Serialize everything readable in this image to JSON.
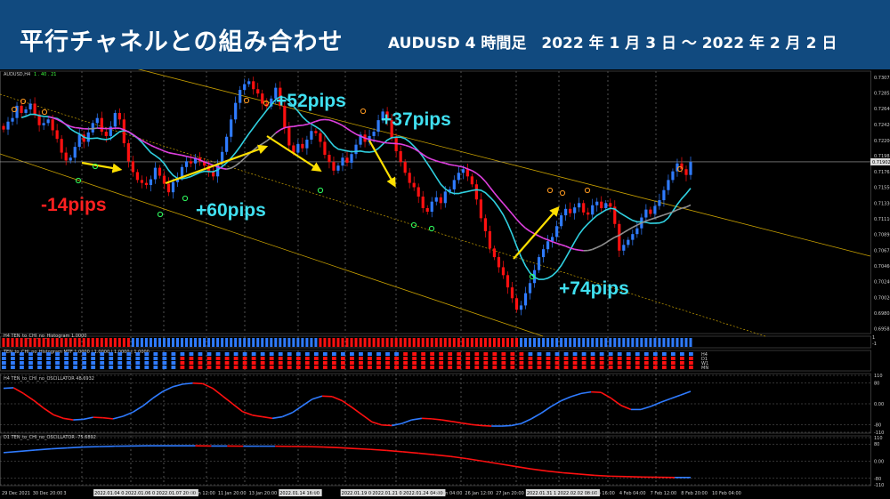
{
  "banner": {
    "title": "平行チャネルとの組み合わせ",
    "subtitle": "AUDUSD 4 時間足　2022 年 1 月 3 日 ～ 2022 年 2 月 2 日"
  },
  "chart_data": [
    {
      "type": "candlestick",
      "symbol_label": "AUDUSD,H4",
      "ohlc_label": "1 . 40 . 21",
      "y_ticks": [
        "0.73075",
        "0.72855",
        "0.72640",
        "0.72420",
        "0.72200",
        "0.71985",
        "0.71765",
        "0.71550",
        "0.71330",
        "0.71110",
        "0.70895",
        "0.70675",
        "0.70460",
        "0.70240",
        "0.70020",
        "0.69805",
        "0.69585"
      ],
      "current_price": "0.71902",
      "ylim": [
        0.6952,
        0.7316
      ],
      "close": [
        0.7235,
        0.7246,
        0.7251,
        0.7268,
        0.7258,
        0.7263,
        0.7271,
        0.7256,
        0.7241,
        0.7244,
        0.7249,
        0.7234,
        0.7222,
        0.7203,
        0.7192,
        0.7196,
        0.7211,
        0.7228,
        0.7218,
        0.7231,
        0.7244,
        0.7251,
        0.7232,
        0.7226,
        0.7239,
        0.7258,
        0.7249,
        0.7216,
        0.7191,
        0.7176,
        0.7165,
        0.7161,
        0.7158,
        0.7166,
        0.7182,
        0.7171,
        0.716,
        0.7148,
        0.7162,
        0.7168,
        0.7183,
        0.7191,
        0.7188,
        0.7196,
        0.7191,
        0.7185,
        0.7177,
        0.717,
        0.7188,
        0.7204,
        0.7225,
        0.7249,
        0.7272,
        0.729,
        0.7298,
        0.7302,
        0.7291,
        0.7285,
        0.7271,
        0.7267,
        0.7278,
        0.7293,
        0.7268,
        0.7238,
        0.7213,
        0.7203,
        0.7215,
        0.7209,
        0.7221,
        0.7233,
        0.723,
        0.7218,
        0.72,
        0.719,
        0.7178,
        0.7185,
        0.7196,
        0.7189,
        0.7201,
        0.7214,
        0.7228,
        0.7218,
        0.7226,
        0.7232,
        0.7248,
        0.726,
        0.7248,
        0.7224,
        0.7205,
        0.719,
        0.7175,
        0.7161,
        0.7155,
        0.7142,
        0.7126,
        0.7121,
        0.7135,
        0.7141,
        0.7133,
        0.7149,
        0.7152,
        0.7165,
        0.7175,
        0.718,
        0.717,
        0.7159,
        0.7138,
        0.7112,
        0.7094,
        0.707,
        0.7058,
        0.7044,
        0.7033,
        0.7016,
        0.7001,
        0.6985,
        0.6991,
        0.7008,
        0.7022,
        0.704,
        0.7058,
        0.7069,
        0.708,
        0.7086,
        0.7101,
        0.7116,
        0.7125,
        0.7119,
        0.7127,
        0.7133,
        0.712,
        0.7117,
        0.713,
        0.7135,
        0.7126,
        0.7133,
        0.7128,
        0.7104,
        0.7067,
        0.7075,
        0.7082,
        0.709,
        0.7098,
        0.7113,
        0.7124,
        0.7118,
        0.7129,
        0.7137,
        0.7151,
        0.7165,
        0.7177,
        0.7188,
        0.718,
        0.7172,
        0.719
      ],
      "trades": [
        {
          "label": "-14pips",
          "color": "#ff2020"
        },
        {
          "label": "+60pips",
          "color": "#40e0f0"
        },
        {
          "label": "+52pips",
          "color": "#40e0f0"
        },
        {
          "label": "+37pips",
          "color": "#40e0f0"
        },
        {
          "label": "+74pips",
          "color": "#40e0f0"
        }
      ]
    },
    {
      "type": "histogram-strip",
      "label": "H4 TEN_to_CHI_no_Histogram 1.0000",
      "scale_top": "1",
      "scale_bottom": "-1"
    },
    {
      "type": "heatmap-strip",
      "label": "TEN_to_CHI_no_Histogram MTF 1.0000 | 1.0000 | 1.0000 | 1.0000",
      "rows": [
        "H4",
        "D1",
        "W1",
        "MN"
      ]
    },
    {
      "type": "line",
      "label": "H4 TEN_to_CHI_no_OSCILLATOR 48.6932",
      "y_ticks": [
        "110",
        "80",
        "0.00",
        "-80",
        "-110"
      ],
      "values": [
        60,
        62,
        40,
        14,
        -16,
        -42,
        -56,
        -62,
        -60,
        -52,
        -54,
        -58,
        -48,
        -32,
        -8,
        22,
        48,
        66,
        76,
        80,
        78,
        60,
        30,
        0,
        -30,
        -44,
        -50,
        -56,
        -50,
        -34,
        -8,
        18,
        30,
        28,
        12,
        -14,
        -42,
        -70,
        -82,
        -84,
        -76,
        -62,
        -56,
        -58,
        -62,
        -68,
        -74,
        -80,
        -84,
        -86,
        -86,
        -84,
        -76,
        -58,
        -36,
        -10,
        12,
        28,
        40,
        46,
        44,
        22,
        -6,
        -22,
        -22,
        -10,
        6,
        20,
        34,
        48
      ]
    },
    {
      "type": "line",
      "label": "D1 TEN_to_CHI_no_OSCILLATOR -75.6892",
      "y_ticks": [
        "110",
        "80",
        "0.00",
        "-80",
        "-110"
      ],
      "values": [
        40,
        46,
        52,
        58,
        62,
        66,
        68,
        70,
        71,
        72,
        72,
        72,
        72,
        71,
        71,
        70,
        70,
        70,
        69,
        68,
        66,
        63,
        59,
        55,
        50,
        44,
        37,
        30,
        22,
        12,
        0,
        -12,
        -24,
        -36,
        -46,
        -54,
        -60,
        -66,
        -70,
        -72,
        -74,
        -75,
        -76,
        -76
      ]
    }
  ],
  "x_axis": {
    "labels": [
      "29 Dec 2021",
      "30 Dec 20:00",
      "3",
      "2022.01.04 04:00",
      "2022.01.06 00:00",
      "2022.01.07 20:00",
      "10 Jan 12:00",
      "11 Jan 20:00",
      "13 Jan 20:00",
      "2022.01.14 16:00",
      "17",
      "2022.01.19 00:00",
      "2022.01.21 08:00",
      "2022.01.24 04:00",
      "25 Jan 04:00",
      "26 Jan 12:00",
      "27 Jan 20:00",
      "2022.01.31 16:00",
      "2022.02.02 08:00",
      "3 Feb 16:00",
      "4 Feb 04:00",
      "7 Feb 12:00",
      "8 Feb 20:00",
      "10 Feb 04:00"
    ]
  },
  "colors": {
    "bull": "#2f7bff",
    "bear": "#ff1010",
    "ma_fast": "#30d0e0",
    "ma_mid": "#e040e0",
    "ma_gray": "#909090",
    "channel": "#c8a000",
    "banner": "#114a7f"
  }
}
